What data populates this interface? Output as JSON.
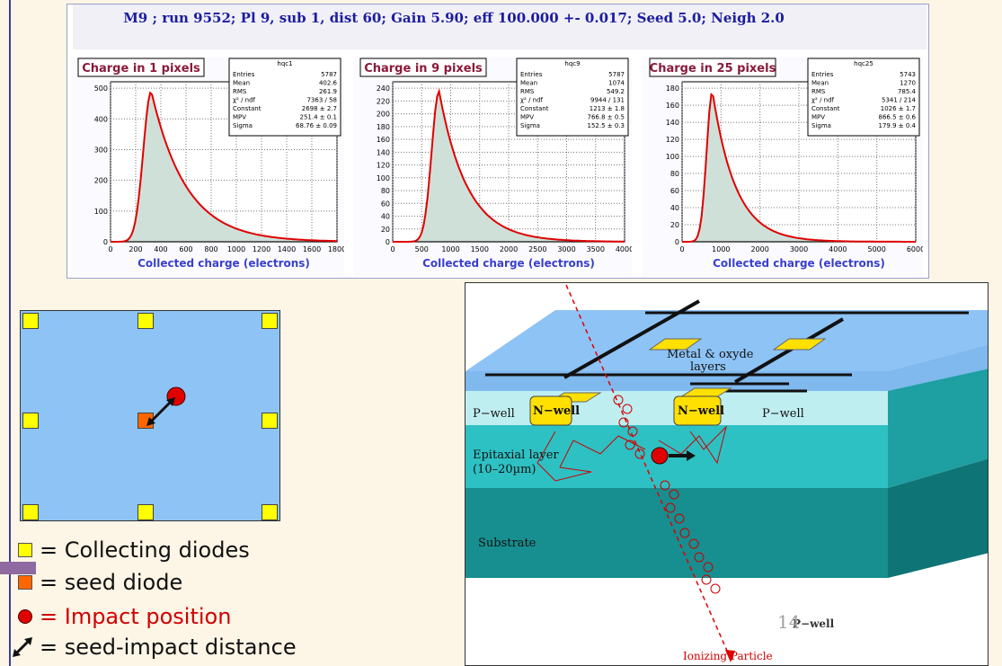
{
  "charts_header": {
    "title": "M9 ; run 9552; Pl 9, sub 1, dist 60; Gain 5.90; eff 100.000 +- 0.017; Seed 5.0; Neigh 2.0"
  },
  "panels": [
    {
      "title": "Charge in 1 pixels",
      "hist_name": "hqc1",
      "stats": [
        [
          "Entries",
          "5787"
        ],
        [
          "Mean",
          "402.6"
        ],
        [
          "RMS",
          "261.9"
        ],
        [
          "χ² / ndf",
          "7363 / 58"
        ],
        [
          "Constant",
          "2698 ± 2.7"
        ],
        [
          "MPV",
          "251.4 ± 0.1"
        ],
        [
          "Sigma",
          "68.76 ± 0.09"
        ]
      ],
      "xlabel": "Collected charge (electrons)",
      "x_ticks": [
        "0",
        "200",
        "400",
        "600",
        "800",
        "1000",
        "1200",
        "1400",
        "1600",
        "1800"
      ],
      "y_ticks": [
        "0",
        "100",
        "200",
        "300",
        "400",
        "500"
      ]
    },
    {
      "title": "Charge in 9 pixels",
      "hist_name": "hqc9",
      "stats": [
        [
          "Entries",
          "5787"
        ],
        [
          "Mean",
          "1074"
        ],
        [
          "RMS",
          "549.2"
        ],
        [
          "χ² / ndf",
          "9944 / 131"
        ],
        [
          "Constant",
          "1213 ± 1.8"
        ],
        [
          "MPV",
          "766.8 ± 0.5"
        ],
        [
          "Sigma",
          "152.5 ± 0.3"
        ]
      ],
      "xlabel": "Collected charge (electrons)",
      "x_ticks": [
        "0",
        "500",
        "1000",
        "1500",
        "2000",
        "2500",
        "3000",
        "3500",
        "4000"
      ],
      "y_ticks": [
        "0",
        "20",
        "40",
        "60",
        "80",
        "100",
        "120",
        "140",
        "160",
        "180",
        "200",
        "220",
        "240"
      ]
    },
    {
      "title": "Charge in 25 pixels",
      "hist_name": "hqc25",
      "stats": [
        [
          "Entries",
          "5743"
        ],
        [
          "Mean",
          "1270"
        ],
        [
          "RMS",
          "785.4"
        ],
        [
          "χ² / ndf",
          "5341 / 214"
        ],
        [
          "Constant",
          "1026 ± 1.7"
        ],
        [
          "MPV",
          "866.5 ± 0.6"
        ],
        [
          "Sigma",
          "179.9 ± 0.4"
        ]
      ],
      "xlabel": "Collected charge (electrons)",
      "x_ticks": [
        "0",
        "1000",
        "2000",
        "3000",
        "4000",
        "5000",
        "6000"
      ],
      "y_ticks": [
        "0",
        "20",
        "40",
        "60",
        "80",
        "100",
        "120",
        "140",
        "160",
        "180"
      ]
    }
  ],
  "legend": {
    "collecting": "= Collecting diodes",
    "seed": "= seed diode",
    "impact": "= Impact position",
    "distance": "= seed-impact distance"
  },
  "diagram": {
    "metal_label": "Metal & oxyde",
    "layers_label": "layers",
    "pwell_left": "P−well",
    "nwell_left": "N−well",
    "nwell_right": "N−well",
    "pwell_right": "P−well",
    "epi_label": "Epitaxial layer",
    "epi_sub": "(10–20µm)",
    "substrate": "Substrate",
    "pwell_bottom": "P−well",
    "ionizing": "Ionizing Particle"
  },
  "slide_number": "14",
  "colors": {
    "frame": "#3a3f9a",
    "diode": "#ffff00",
    "seed": "#ff6600",
    "impact": "#e00000",
    "pixel_matrix": "#8ec3f5"
  }
}
